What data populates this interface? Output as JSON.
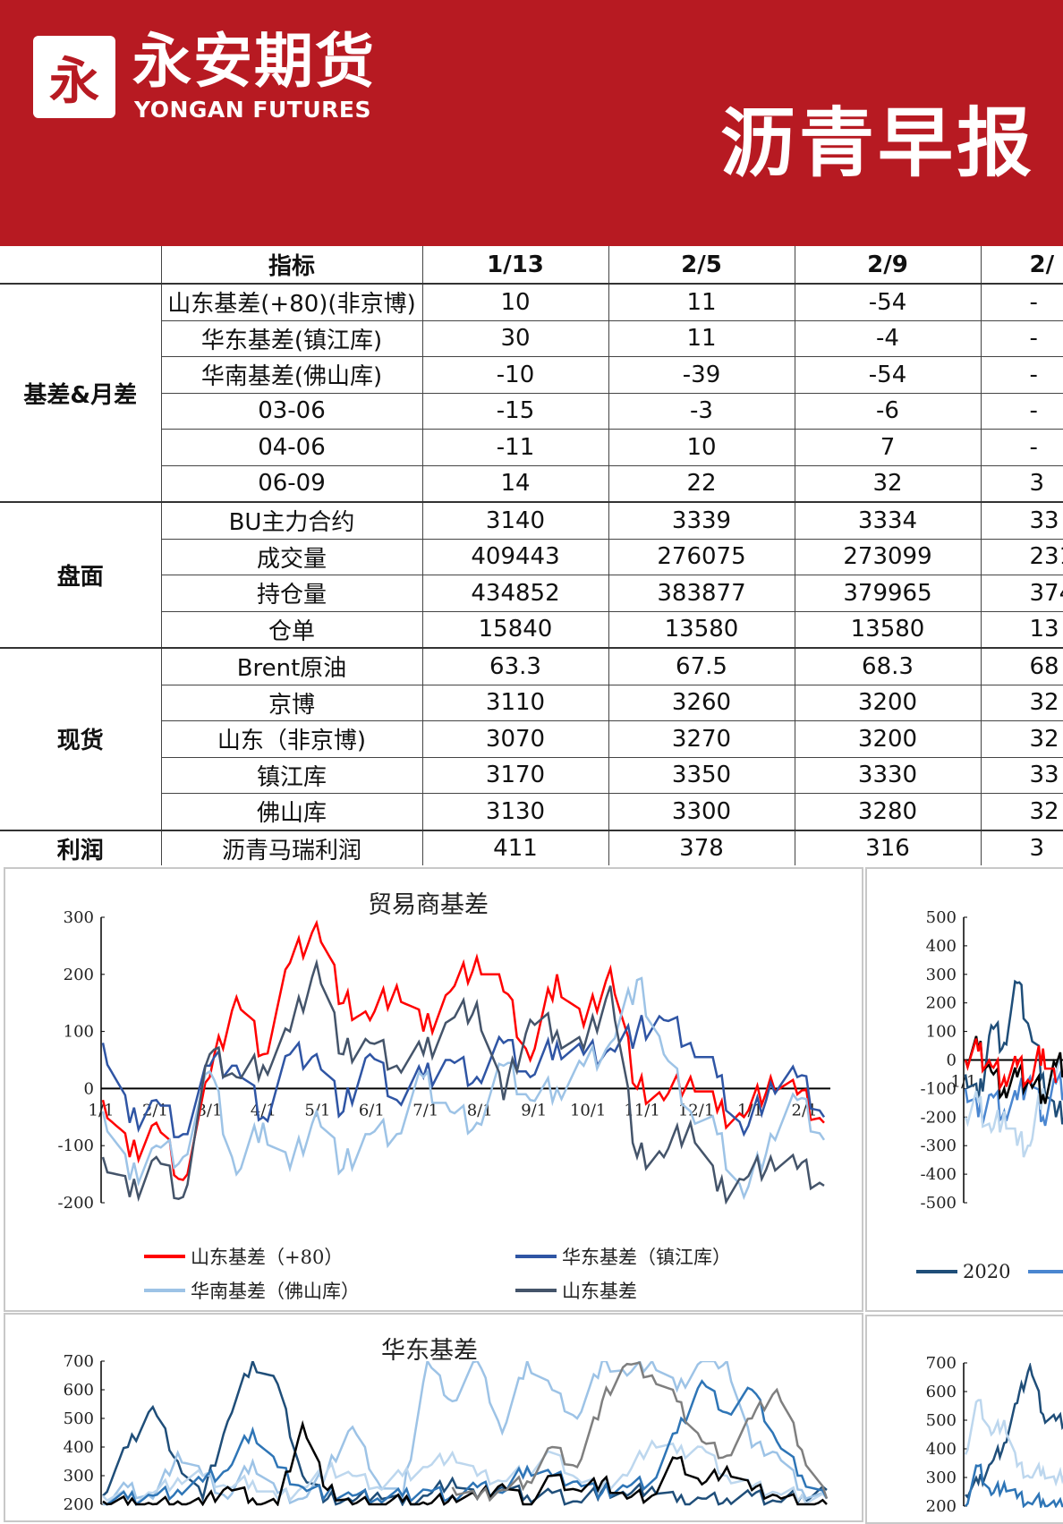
{
  "header": {
    "logo_mark": "永",
    "brand_cn": "永安期货",
    "brand_en": "YONGAN FUTURES",
    "report_title": "沥青早报",
    "brand_color": "#b71a22"
  },
  "table": {
    "columns": [
      "",
      "指标",
      "1/13",
      "2/5",
      "2/9",
      "2/"
    ],
    "sections": [
      {
        "group": "基差&月差",
        "rows": [
          {
            "label": "山东基差(+80)(非京博)",
            "values": [
              "10",
              "11",
              "-54",
              "-"
            ]
          },
          {
            "label": "华东基差(镇江库)",
            "values": [
              "30",
              "11",
              "-4",
              "-"
            ]
          },
          {
            "label": "华南基差(佛山库)",
            "values": [
              "-10",
              "-39",
              "-54",
              "-"
            ]
          },
          {
            "label": "03-06",
            "values": [
              "-15",
              "-3",
              "-6",
              "-"
            ]
          },
          {
            "label": "04-06",
            "values": [
              "-11",
              "10",
              "7",
              "-"
            ]
          },
          {
            "label": "06-09",
            "values": [
              "14",
              "22",
              "32",
              "3"
            ]
          }
        ]
      },
      {
        "group": "盘面",
        "rows": [
          {
            "label": "BU主力合约",
            "values": [
              "3140",
              "3339",
              "3334",
              "33"
            ]
          },
          {
            "label": "成交量",
            "values": [
              "409443",
              "276075",
              "273099",
              "231"
            ]
          },
          {
            "label": "持仓量",
            "values": [
              "434852",
              "383877",
              "379965",
              "374"
            ]
          },
          {
            "label": "仓单",
            "values": [
              "15840",
              "13580",
              "13580",
              "13"
            ]
          }
        ]
      },
      {
        "group": "现货",
        "rows": [
          {
            "label": "Brent原油",
            "values": [
              "63.3",
              "67.5",
              "68.3",
              "68"
            ]
          },
          {
            "label": "京博",
            "values": [
              "3110",
              "3260",
              "3200",
              "32"
            ]
          },
          {
            "label": "山东（非京博)",
            "values": [
              "3070",
              "3270",
              "3200",
              "32"
            ]
          },
          {
            "label": "镇江库",
            "values": [
              "3170",
              "3350",
              "3330",
              "33"
            ]
          },
          {
            "label": "佛山库",
            "values": [
              "3130",
              "3300",
              "3280",
              "32"
            ]
          }
        ]
      },
      {
        "group": "利润",
        "rows": [
          {
            "label": "沥青马瑞利润",
            "values": [
              "411",
              "378",
              "316",
              "3"
            ]
          }
        ]
      }
    ]
  },
  "chart_data": [
    {
      "type": "line",
      "title": "贸易商基差",
      "ylim": [
        -200,
        300
      ],
      "yticks": [
        "300",
        "200",
        "100",
        "0",
        "-100",
        "-200"
      ],
      "xtick_labels": [
        "1/1",
        "2/1",
        "3/1",
        "4/1",
        "5/1",
        "6/1",
        "7/1",
        "8/1",
        "9/1",
        "10/1",
        "11/1",
        "12/1",
        "1/1",
        "2/1"
      ],
      "x": [
        "1/1",
        "1/15",
        "2/1",
        "2/15",
        "3/1",
        "3/15",
        "4/1",
        "4/15",
        "5/1",
        "5/15",
        "6/1",
        "6/15",
        "7/1",
        "7/15",
        "8/1",
        "8/15",
        "9/1",
        "9/15",
        "10/1",
        "10/15",
        "11/1",
        "11/15",
        "12/1",
        "12/15",
        "1/1",
        "1/15",
        "2/1",
        "2/15"
      ],
      "legend": "bottom",
      "series": [
        {
          "name": "山东基差（+80）",
          "color": "#ff0000",
          "values": [
            -20,
            -120,
            -60,
            -160,
            20,
            160,
            60,
            220,
            290,
            150,
            120,
            180,
            100,
            170,
            230,
            170,
            50,
            200,
            110,
            210,
            0,
            -20,
            20,
            -40,
            -50,
            20,
            -10,
            -60
          ]
        },
        {
          "name": "华东基差（镇江库）",
          "color": "#2f55a4",
          "values": [
            80,
            -60,
            -20,
            -80,
            40,
            40,
            -50,
            60,
            60,
            -40,
            60,
            -20,
            20,
            50,
            20,
            80,
            20,
            80,
            60,
            70,
            100,
            120,
            80,
            20,
            -80,
            10,
            20,
            -50
          ]
        },
        {
          "name": "华南基差（佛山库）",
          "color": "#9dc3e6",
          "values": [
            -40,
            -160,
            -100,
            -120,
            30,
            -150,
            -60,
            -140,
            -40,
            -140,
            -80,
            -80,
            20,
            -40,
            -60,
            40,
            -20,
            0,
            40,
            80,
            190,
            60,
            -40,
            -80,
            -190,
            -80,
            -20,
            -90
          ]
        },
        {
          "name": "山东基差",
          "color": "#44546a",
          "values": [
            -120,
            -190,
            -120,
            -190,
            60,
            20,
            40,
            100,
            220,
            60,
            80,
            40,
            60,
            120,
            150,
            -20,
            120,
            100,
            70,
            180,
            -120,
            -120,
            -60,
            -180,
            -160,
            -120,
            -140,
            -170
          ]
        }
      ]
    },
    {
      "type": "line",
      "title": "",
      "ylim": [
        -500,
        500
      ],
      "yticks": [
        "500",
        "400",
        "300",
        "200",
        "100",
        "0",
        "-100",
        "-200",
        "-300",
        "-400",
        "-500"
      ],
      "xtick_labels": [
        "1/1"
      ],
      "legend": "bottom",
      "series": [
        {
          "name": "2020",
          "color": "#1f4e79",
          "values": [
            -50,
            -150,
            120,
            60,
            270,
            100,
            -50,
            -200,
            -150,
            -20
          ]
        },
        {
          "name": "",
          "color": "#4a86d0",
          "values": [
            -100,
            -200,
            -120,
            -180,
            -140,
            -60,
            -200,
            -80,
            -100,
            0
          ]
        },
        {
          "name": "",
          "color": "#bdd7ee",
          "values": [
            -200,
            -150,
            -250,
            -180,
            -300,
            -300,
            -100,
            -50,
            20,
            60
          ]
        },
        {
          "name": "",
          "color": "#000000",
          "values": [
            0,
            40,
            -40,
            -100,
            -60,
            -80,
            -120,
            -20,
            0,
            20
          ]
        },
        {
          "name": "",
          "color": "#ff0000",
          "values": [
            0,
            30,
            -20,
            -60,
            -20,
            -80,
            40,
            -80,
            null,
            null
          ]
        }
      ]
    },
    {
      "type": "line",
      "title": "华东基差",
      "ylim": [
        200,
        700
      ],
      "yticks": [
        "700",
        "600",
        "500",
        "400",
        "300",
        "200"
      ],
      "legend": "none",
      "series": [
        {
          "name": "",
          "color": "#1f4e79",
          "values": [
            230,
            400,
            540,
            350,
            220,
            490,
            700,
            620,
            300,
            220,
            210,
            240,
            200,
            230,
            290,
            220,
            260,
            230,
            240,
            210,
            250,
            230,
            260,
            210,
            220,
            220,
            230,
            210,
            230,
            250
          ]
        },
        {
          "name": "",
          "color": "#9dc3e6",
          "values": [
            200,
            260,
            220,
            380,
            300,
            220,
            350,
            240,
            220,
            320,
            470,
            280,
            220,
            700,
            560,
            700,
            450,
            700,
            600,
            500,
            700,
            650,
            700,
            600,
            700,
            700,
            400,
            380,
            250,
            220
          ]
        },
        {
          "name": "",
          "color": "#bdd7ee",
          "values": [
            230,
            220,
            240,
            290,
            300,
            260,
            280,
            220,
            260,
            320,
            300,
            260,
            300,
            330,
            380,
            300,
            280,
            320,
            380,
            290,
            260,
            300,
            420,
            380,
            400,
            300,
            260,
            240,
            230,
            220
          ]
        },
        {
          "name": "",
          "color": "#2e75b6",
          "values": [
            210,
            220,
            230,
            250,
            280,
            320,
            460,
            330,
            260,
            240,
            230,
            220,
            230,
            250,
            230,
            260,
            240,
            330,
            300,
            280,
            240,
            260,
            280,
            450,
            630,
            520,
            600,
            420,
            300,
            220
          ]
        },
        {
          "name": "",
          "color": "#000000",
          "values": [
            210,
            200,
            200,
            210,
            200,
            260,
            220,
            200,
            480,
            250,
            200,
            200,
            210,
            200,
            230,
            220,
            270,
            200,
            300,
            250,
            280,
            220,
            230,
            360,
            270,
            330,
            250,
            230,
            200,
            200
          ]
        },
        {
          "name": "",
          "color": "#7f7f7f",
          "values": [
            null,
            null,
            null,
            null,
            null,
            null,
            null,
            null,
            null,
            null,
            null,
            null,
            null,
            null,
            260,
            220,
            250,
            280,
            400,
            330,
            560,
            690,
            650,
            560,
            420,
            370,
            500,
            600,
            390,
            220
          ]
        }
      ]
    },
    {
      "type": "line",
      "title": "",
      "ylim": [
        200,
        700
      ],
      "yticks": [
        "700",
        "600",
        "500",
        "400",
        "300",
        "200"
      ],
      "legend": "none",
      "series": [
        {
          "name": "",
          "color": "#1f4e79",
          "values": [
            240,
            280,
            350,
            420,
            560,
            690,
            520,
            500,
            500,
            400
          ]
        },
        {
          "name": "",
          "color": "#bdd7ee",
          "values": [
            380,
            570,
            450,
            500,
            340,
            300,
            330,
            280,
            350,
            360
          ]
        },
        {
          "name": "",
          "color": "#2e75b6",
          "values": [
            200,
            340,
            240,
            280,
            230,
            210,
            220,
            200,
            210,
            220
          ]
        }
      ]
    }
  ]
}
